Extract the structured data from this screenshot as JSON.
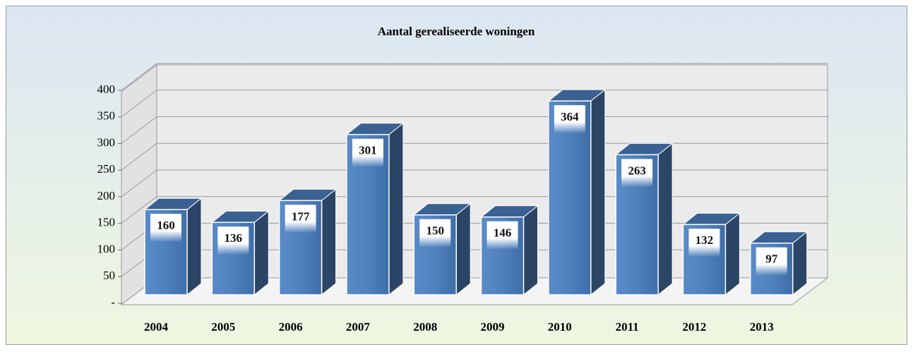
{
  "chart_data": {
    "type": "bar3d",
    "title": "Aantal gerealiseerde woningen",
    "categories": [
      "2004",
      "2005",
      "2006",
      "2007",
      "2008",
      "2009",
      "2010",
      "2011",
      "2012",
      "2013"
    ],
    "values": [
      160,
      136,
      177,
      301,
      150,
      146,
      364,
      263,
      132,
      97
    ],
    "color": "#4f81bd",
    "ylim": [
      0,
      400
    ],
    "yticks": [
      {
        "value": 0,
        "label": "-"
      },
      50,
      100,
      150,
      200,
      250,
      300,
      350,
      400
    ],
    "grid": true
  }
}
